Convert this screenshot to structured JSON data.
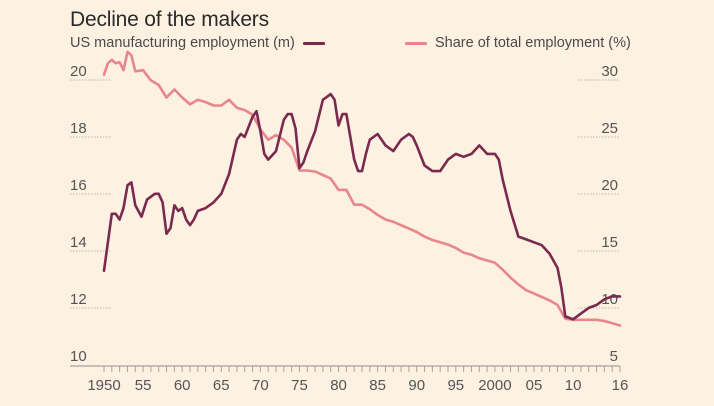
{
  "colors": {
    "background": "#fdf1e2",
    "manufacturing": "#7a2a4e",
    "share": "#e8868c",
    "grid": "#bdb6ae",
    "axis": "#a8a29c"
  },
  "chart_data": {
    "type": "line",
    "title": "Decline of the makers",
    "xlabel": "",
    "x_range": [
      1950,
      2016
    ],
    "x_tick_labels": [
      {
        "year": 1950,
        "label": "1950"
      },
      {
        "year": 1955,
        "label": "55"
      },
      {
        "year": 1960,
        "label": "60"
      },
      {
        "year": 1965,
        "label": "65"
      },
      {
        "year": 1970,
        "label": "70"
      },
      {
        "year": 1975,
        "label": "75"
      },
      {
        "year": 1980,
        "label": "80"
      },
      {
        "year": 1985,
        "label": "85"
      },
      {
        "year": 1990,
        "label": "90"
      },
      {
        "year": 1995,
        "label": "95"
      },
      {
        "year": 2000,
        "label": "2000"
      },
      {
        "year": 2005,
        "label": "05"
      },
      {
        "year": 2010,
        "label": "10"
      },
      {
        "year": 2016,
        "label": "16"
      }
    ],
    "left_axis": {
      "label": "US manufacturing employment (m)",
      "ylim": [
        10,
        20
      ],
      "ticks": [
        10,
        12,
        14,
        16,
        18,
        20
      ]
    },
    "right_axis": {
      "label": "Share of total employment (%)",
      "ylim": [
        5,
        30
      ],
      "ticks": [
        5,
        10,
        15,
        20,
        25,
        30
      ]
    },
    "grid": true,
    "legend": "top",
    "series": [
      {
        "name": "US manufacturing employment (m)",
        "axis": "left",
        "points": [
          [
            1950,
            13.2
          ],
          [
            1950.5,
            14.2
          ],
          [
            1951,
            15.2
          ],
          [
            1951.5,
            15.2
          ],
          [
            1952,
            15.0
          ],
          [
            1952.5,
            15.4
          ],
          [
            1953,
            16.2
          ],
          [
            1953.5,
            16.3
          ],
          [
            1954,
            15.5
          ],
          [
            1954.8,
            15.1
          ],
          [
            1955.5,
            15.7
          ],
          [
            1956,
            15.8
          ],
          [
            1956.5,
            15.9
          ],
          [
            1957,
            15.9
          ],
          [
            1957.5,
            15.6
          ],
          [
            1958,
            14.5
          ],
          [
            1958.5,
            14.7
          ],
          [
            1959,
            15.5
          ],
          [
            1959.5,
            15.3
          ],
          [
            1960,
            15.4
          ],
          [
            1960.5,
            15.0
          ],
          [
            1961,
            14.8
          ],
          [
            1961.5,
            15.0
          ],
          [
            1962,
            15.3
          ],
          [
            1963,
            15.4
          ],
          [
            1964,
            15.6
          ],
          [
            1965,
            15.9
          ],
          [
            1966,
            16.6
          ],
          [
            1967,
            17.8
          ],
          [
            1967.5,
            18.0
          ],
          [
            1968,
            17.9
          ],
          [
            1969,
            18.6
          ],
          [
            1969.5,
            18.8
          ],
          [
            1970,
            18.1
          ],
          [
            1970.5,
            17.3
          ],
          [
            1971,
            17.1
          ],
          [
            1972,
            17.4
          ],
          [
            1973,
            18.5
          ],
          [
            1973.5,
            18.7
          ],
          [
            1974,
            18.7
          ],
          [
            1974.5,
            18.2
          ],
          [
            1975,
            16.8
          ],
          [
            1975.5,
            17.0
          ],
          [
            1976,
            17.4
          ],
          [
            1977,
            18.1
          ],
          [
            1978,
            19.2
          ],
          [
            1979,
            19.4
          ],
          [
            1979.5,
            19.2
          ],
          [
            1980,
            18.3
          ],
          [
            1980.5,
            18.7
          ],
          [
            1981,
            18.7
          ],
          [
            1981.5,
            17.9
          ],
          [
            1982,
            17.1
          ],
          [
            1982.5,
            16.7
          ],
          [
            1983,
            16.7
          ],
          [
            1983.5,
            17.3
          ],
          [
            1984,
            17.8
          ],
          [
            1985,
            18.0
          ],
          [
            1986,
            17.6
          ],
          [
            1987,
            17.4
          ],
          [
            1988,
            17.8
          ],
          [
            1989,
            18.0
          ],
          [
            1989.5,
            17.9
          ],
          [
            1990,
            17.6
          ],
          [
            1991,
            16.9
          ],
          [
            1992,
            16.7
          ],
          [
            1993,
            16.7
          ],
          [
            1994,
            17.1
          ],
          [
            1995,
            17.3
          ],
          [
            1996,
            17.2
          ],
          [
            1997,
            17.3
          ],
          [
            1998,
            17.6
          ],
          [
            1999,
            17.3
          ],
          [
            2000,
            17.3
          ],
          [
            2000.5,
            17.1
          ],
          [
            2001,
            16.4
          ],
          [
            2002,
            15.3
          ],
          [
            2003,
            14.4
          ],
          [
            2004,
            14.3
          ],
          [
            2005,
            14.2
          ],
          [
            2006,
            14.1
          ],
          [
            2007,
            13.8
          ],
          [
            2008,
            13.3
          ],
          [
            2008.5,
            12.6
          ],
          [
            2009,
            11.6
          ],
          [
            2010,
            11.5
          ],
          [
            2011,
            11.7
          ],
          [
            2012,
            11.9
          ],
          [
            2013,
            12.0
          ],
          [
            2014,
            12.2
          ],
          [
            2015,
            12.3
          ],
          [
            2016,
            12.3
          ]
        ]
      },
      {
        "name": "Share of total employment (%)",
        "axis": "right",
        "points": [
          [
            1950,
            30.2
          ],
          [
            1950.5,
            31.2
          ],
          [
            1951,
            31.5
          ],
          [
            1951.5,
            31.2
          ],
          [
            1952,
            31.3
          ],
          [
            1952.5,
            30.6
          ],
          [
            1953,
            32.2
          ],
          [
            1953.5,
            31.9
          ],
          [
            1954,
            30.5
          ],
          [
            1955,
            30.6
          ],
          [
            1956,
            29.7
          ],
          [
            1957,
            29.3
          ],
          [
            1958,
            28.2
          ],
          [
            1959,
            28.9
          ],
          [
            1960,
            28.2
          ],
          [
            1961,
            27.6
          ],
          [
            1962,
            28.0
          ],
          [
            1963,
            27.8
          ],
          [
            1964,
            27.5
          ],
          [
            1965,
            27.5
          ],
          [
            1966,
            28.0
          ],
          [
            1967,
            27.3
          ],
          [
            1968,
            27.1
          ],
          [
            1969,
            26.7
          ],
          [
            1970,
            25.4
          ],
          [
            1971,
            24.5
          ],
          [
            1972,
            24.9
          ],
          [
            1973,
            24.5
          ],
          [
            1974,
            23.8
          ],
          [
            1975,
            21.8
          ],
          [
            1976,
            21.8
          ],
          [
            1977,
            21.7
          ],
          [
            1978,
            21.4
          ],
          [
            1979,
            21.1
          ],
          [
            1980,
            20.1
          ],
          [
            1981,
            20.1
          ],
          [
            1982,
            18.8
          ],
          [
            1983,
            18.8
          ],
          [
            1984,
            18.4
          ],
          [
            1985,
            17.9
          ],
          [
            1986,
            17.5
          ],
          [
            1987,
            17.3
          ],
          [
            1988,
            17.0
          ],
          [
            1989,
            16.7
          ],
          [
            1990,
            16.4
          ],
          [
            1991,
            16.0
          ],
          [
            1992,
            15.7
          ],
          [
            1993,
            15.5
          ],
          [
            1994,
            15.3
          ],
          [
            1995,
            15.0
          ],
          [
            1996,
            14.6
          ],
          [
            1997,
            14.4
          ],
          [
            1998,
            14.1
          ],
          [
            1999,
            13.9
          ],
          [
            2000,
            13.7
          ],
          [
            2001,
            13.1
          ],
          [
            2002,
            12.4
          ],
          [
            2003,
            11.8
          ],
          [
            2004,
            11.3
          ],
          [
            2005,
            11.0
          ],
          [
            2006,
            10.7
          ],
          [
            2007,
            10.4
          ],
          [
            2008,
            10.0
          ],
          [
            2009,
            8.8
          ],
          [
            2010,
            8.7
          ],
          [
            2011,
            8.7
          ],
          [
            2012,
            8.7
          ],
          [
            2013,
            8.7
          ],
          [
            2014,
            8.6
          ],
          [
            2015,
            8.4
          ],
          [
            2016,
            8.2
          ]
        ]
      }
    ]
  }
}
